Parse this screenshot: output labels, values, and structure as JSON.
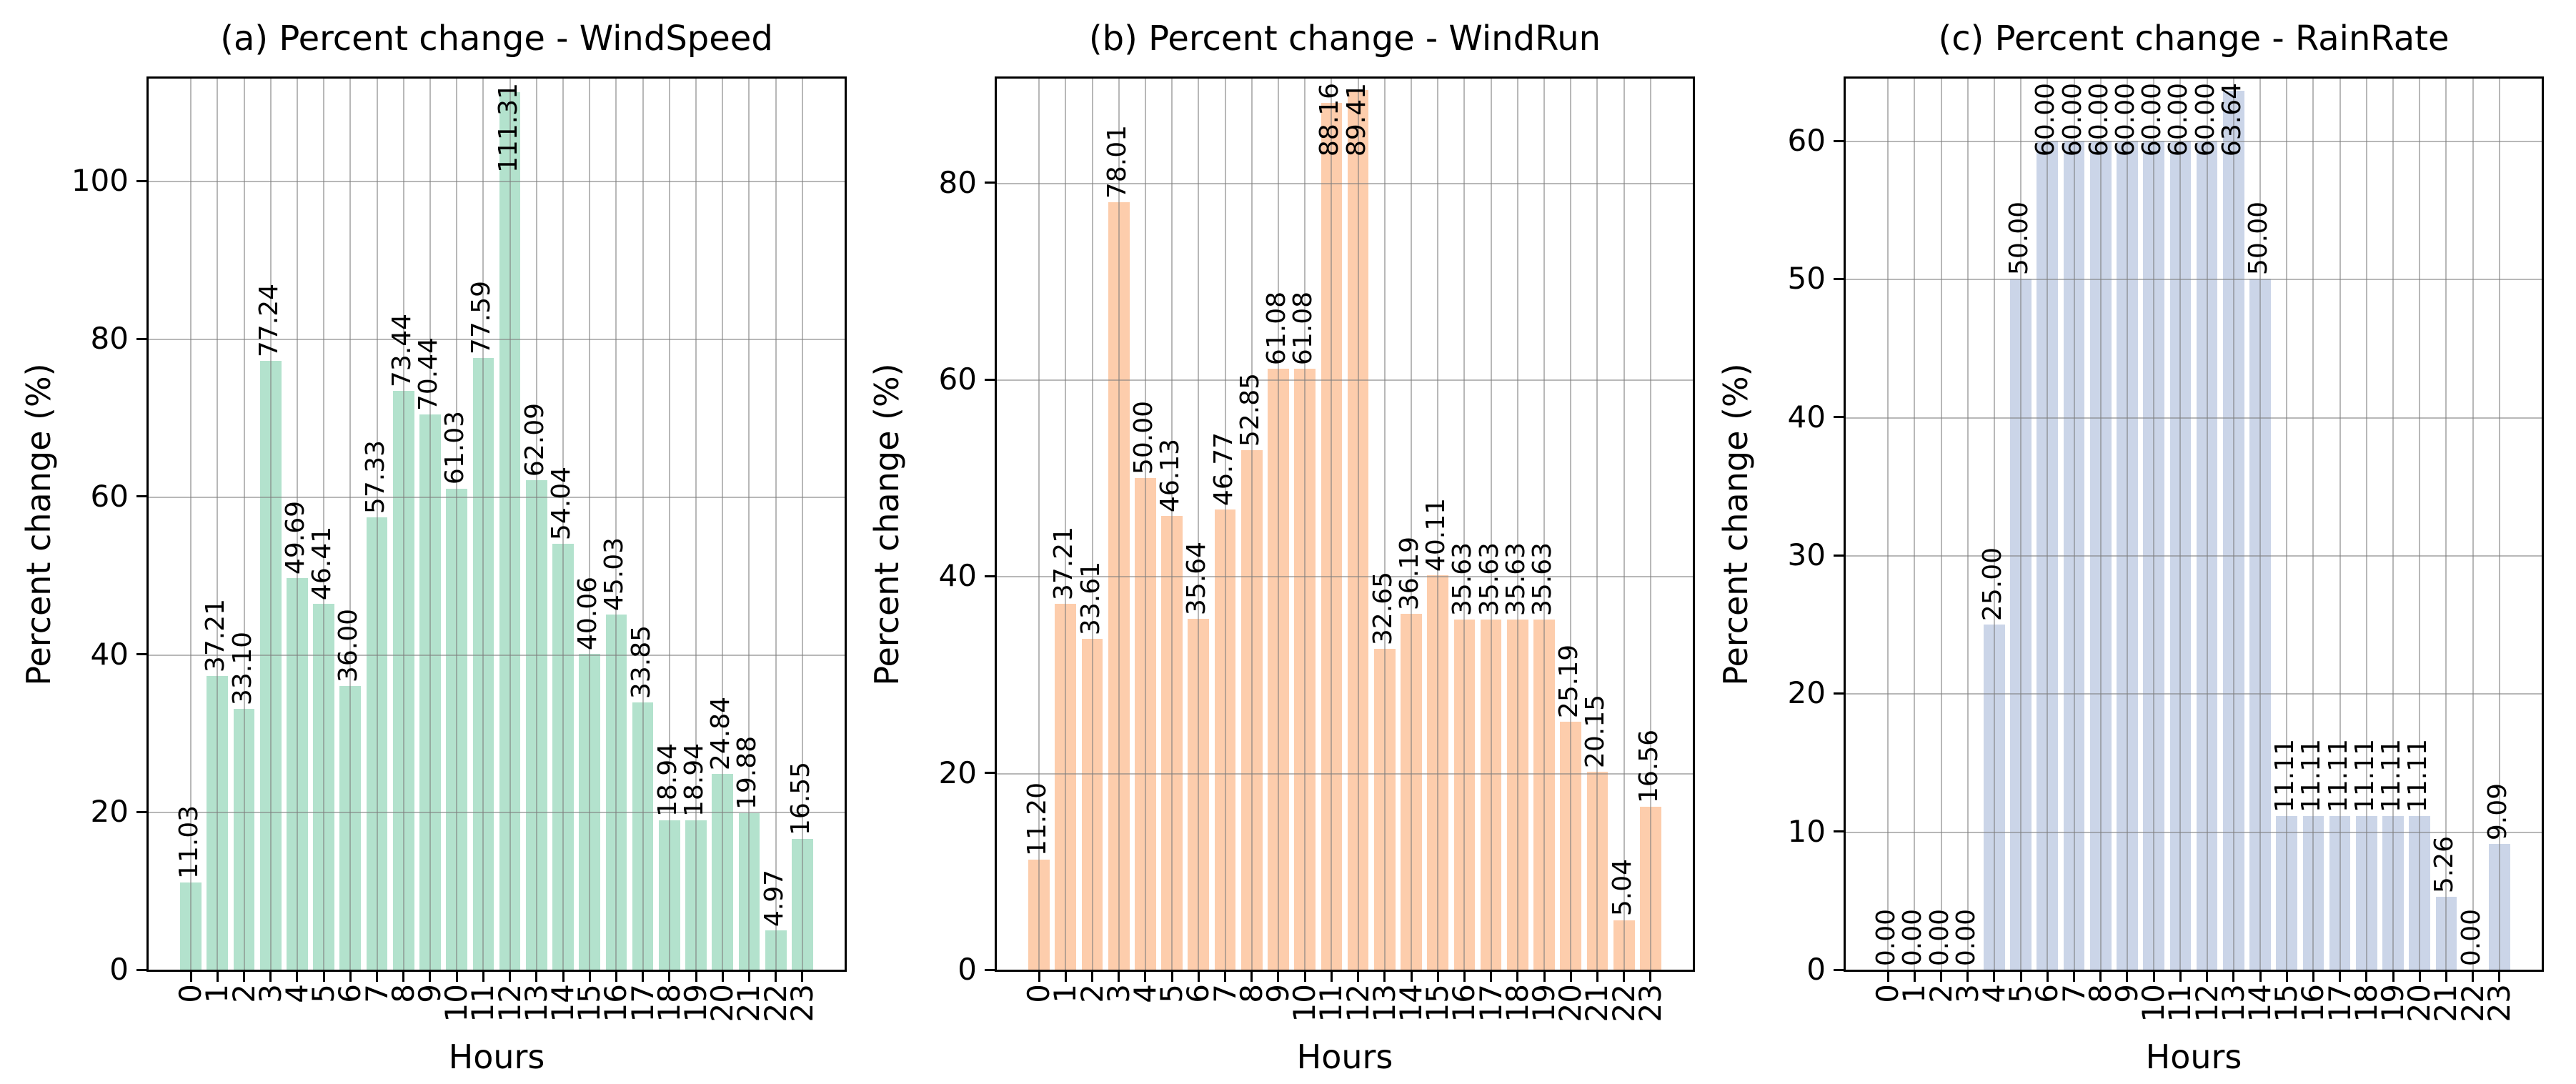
{
  "figure": {
    "background": "#ffffff",
    "grid_color": "#7d7d7d",
    "spine_color": "#000000",
    "text_color": "#000000"
  },
  "chart_data": [
    {
      "type": "bar",
      "title": "(a) Percent change - WindSpeed",
      "xlabel": "Hours",
      "ylabel": "Percent change (%)",
      "bar_color": "#b3e2cd",
      "categories": [
        "0",
        "1",
        "2",
        "3",
        "4",
        "5",
        "6",
        "7",
        "8",
        "9",
        "10",
        "11",
        "12",
        "13",
        "14",
        "15",
        "16",
        "17",
        "18",
        "19",
        "20",
        "21",
        "22",
        "23"
      ],
      "values": [
        11.03,
        37.21,
        33.1,
        77.24,
        49.69,
        46.41,
        36.0,
        57.33,
        73.44,
        70.44,
        61.03,
        77.59,
        111.31,
        62.09,
        54.04,
        40.06,
        45.03,
        33.85,
        18.94,
        18.94,
        24.84,
        19.88,
        4.97,
        16.55
      ],
      "yticks": [
        0,
        20,
        40,
        60,
        80,
        100
      ],
      "ylim": [
        0,
        113
      ],
      "grid": true,
      "legend": null,
      "value_label_rotation": 90,
      "value_label_format": "2-decimals"
    },
    {
      "type": "bar",
      "title": "(b) Percent change - WindRun",
      "xlabel": "Hours",
      "ylabel": "Percent change (%)",
      "bar_color": "#fdcdac",
      "categories": [
        "0",
        "1",
        "2",
        "3",
        "4",
        "5",
        "6",
        "7",
        "8",
        "9",
        "10",
        "11",
        "12",
        "13",
        "14",
        "15",
        "16",
        "17",
        "18",
        "19",
        "20",
        "21",
        "22",
        "23"
      ],
      "values": [
        11.2,
        37.21,
        33.61,
        78.01,
        50.0,
        46.13,
        35.64,
        46.77,
        52.85,
        61.08,
        61.08,
        88.16,
        89.41,
        32.65,
        36.19,
        40.11,
        35.63,
        35.63,
        35.63,
        35.63,
        25.19,
        20.15,
        5.04,
        16.56
      ],
      "yticks": [
        0,
        20,
        40,
        60,
        80
      ],
      "ylim": [
        0,
        90.6
      ],
      "grid": true,
      "legend": null,
      "value_label_rotation": 90,
      "value_label_format": "2-decimals"
    },
    {
      "type": "bar",
      "title": "(c) Percent change - RainRate",
      "xlabel": "Hours",
      "ylabel": "Percent change (%)",
      "bar_color": "#cbd5e8",
      "categories": [
        "0",
        "1",
        "2",
        "3",
        "4",
        "5",
        "6",
        "7",
        "8",
        "9",
        "10",
        "11",
        "12",
        "13",
        "14",
        "15",
        "16",
        "17",
        "18",
        "19",
        "20",
        "21",
        "22",
        "23"
      ],
      "values": [
        0.0,
        0.0,
        0.0,
        0.0,
        25.0,
        50.0,
        60.0,
        60.0,
        60.0,
        60.0,
        60.0,
        60.0,
        60.0,
        63.64,
        50.0,
        11.11,
        11.11,
        11.11,
        11.11,
        11.11,
        11.11,
        5.26,
        0.0,
        9.09
      ],
      "yticks": [
        0,
        10,
        20,
        30,
        40,
        50,
        60
      ],
      "ylim": [
        0,
        64.5
      ],
      "grid": true,
      "legend": null,
      "value_label_rotation": 90,
      "value_label_format": "2-decimals"
    }
  ]
}
